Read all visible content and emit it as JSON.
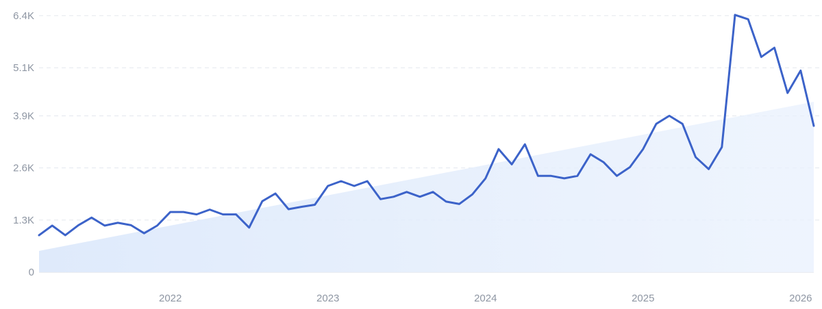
{
  "chart_data": {
    "type": "line",
    "title": "",
    "xlabel": "",
    "ylabel": "",
    "x_tick_labels": [
      "2022",
      "2023",
      "2024",
      "2025",
      "2026"
    ],
    "y_tick_labels": [
      "0",
      "1.3K",
      "2.6K",
      "3.9K",
      "5.1K",
      "6.4K"
    ],
    "y_tick_values": [
      0,
      1300,
      2600,
      3900,
      5100,
      6400
    ],
    "ylim": [
      0,
      6450
    ],
    "xlim": [
      "2021-03",
      "2026-02"
    ],
    "grid": "horizontal dashed",
    "legend": "none",
    "colors": {
      "line": "#3c63c9",
      "trend_area": "#dde9fb"
    },
    "trend_area": {
      "start": 530,
      "end": 4250
    },
    "series": [
      {
        "x": [
          "2021-03",
          "2021-04",
          "2021-05",
          "2021-06",
          "2021-07",
          "2021-08",
          "2021-09",
          "2021-10",
          "2021-11",
          "2021-12",
          "2022-01",
          "2022-02",
          "2022-03",
          "2022-04",
          "2022-05",
          "2022-06",
          "2022-07",
          "2022-08",
          "2022-09",
          "2022-10",
          "2022-11",
          "2022-12",
          "2023-01",
          "2023-02",
          "2023-03",
          "2023-04",
          "2023-05",
          "2023-06",
          "2023-07",
          "2023-08",
          "2023-09",
          "2023-10",
          "2023-11",
          "2023-12",
          "2024-01",
          "2024-02",
          "2024-03",
          "2024-04",
          "2024-05",
          "2024-06",
          "2024-07",
          "2024-08",
          "2024-09",
          "2024-10",
          "2024-11",
          "2024-12",
          "2025-01",
          "2025-02",
          "2025-03",
          "2025-04",
          "2025-05",
          "2025-06",
          "2025-07",
          "2025-08",
          "2025-09",
          "2025-10",
          "2025-11",
          "2025-12",
          "2026-01",
          "2026-02"
        ],
        "values": [
          920,
          1160,
          920,
          1170,
          1360,
          1160,
          1230,
          1170,
          970,
          1160,
          1500,
          1500,
          1440,
          1560,
          1440,
          1440,
          1110,
          1770,
          1960,
          1570,
          1630,
          1680,
          2150,
          2270,
          2150,
          2270,
          1820,
          1880,
          2000,
          1880,
          2000,
          1760,
          1700,
          1940,
          2340,
          3070,
          2690,
          3190,
          2400,
          2400,
          2340,
          2400,
          2940,
          2740,
          2400,
          2620,
          3070,
          3700,
          3900,
          3700,
          2870,
          2570,
          3120,
          6420,
          6310,
          5370,
          5600,
          4470,
          5030,
          3650
        ]
      }
    ]
  }
}
